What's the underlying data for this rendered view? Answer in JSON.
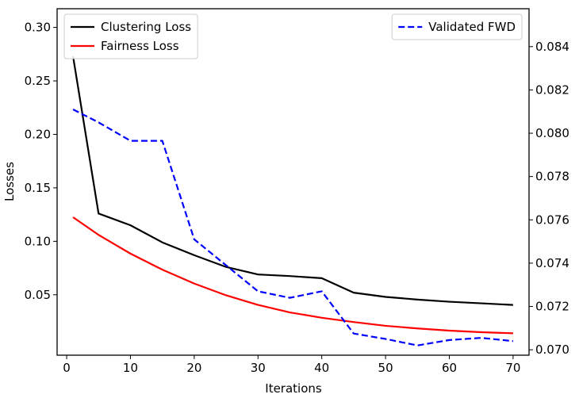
{
  "chart_data": {
    "type": "line",
    "title": "",
    "xlabel": "Iterations",
    "ylabel": "Losses",
    "y2label": "",
    "xlim": [
      -1.5,
      72.5
    ],
    "ylim": [
      -0.0065,
      0.3175
    ],
    "y2lim": [
      0.06975,
      0.08575
    ],
    "grid": false,
    "x_ticks": [
      0,
      10,
      20,
      30,
      40,
      50,
      60,
      70
    ],
    "x_tick_labels": [
      "0",
      "10",
      "20",
      "30",
      "40",
      "50",
      "60",
      "70"
    ],
    "y_ticks": [
      0.05,
      0.1,
      0.15,
      0.2,
      0.25,
      0.3
    ],
    "y_tick_labels": [
      "0.05",
      "0.10",
      "0.15",
      "0.20",
      "0.25",
      "0.30"
    ],
    "y2_ticks": [
      0.07,
      0.072,
      0.074,
      0.076,
      0.078,
      0.08,
      0.082,
      0.084
    ],
    "y2_tick_labels": [
      "0.070",
      "0.072",
      "0.074",
      "0.076",
      "0.078",
      "0.080",
      "0.082",
      "0.084"
    ],
    "x": [
      1,
      5,
      10,
      15,
      20,
      25,
      30,
      35,
      40,
      45,
      50,
      55,
      60,
      65,
      70
    ],
    "series": [
      {
        "name": "Clustering Loss",
        "axis": "left",
        "color": "#000000",
        "style": "solid",
        "values": [
          0.273,
          0.126,
          0.115,
          0.099,
          0.087,
          0.076,
          0.069,
          0.0675,
          0.0655,
          0.052,
          0.048,
          0.0455,
          0.0435,
          0.042,
          0.0405
        ]
      },
      {
        "name": "Fairness Loss",
        "axis": "left",
        "color": "#ff0000",
        "style": "solid",
        "values": [
          0.1225,
          0.106,
          0.0885,
          0.0735,
          0.0605,
          0.0495,
          0.0405,
          0.0335,
          0.0285,
          0.0245,
          0.021,
          0.0185,
          0.0165,
          0.015,
          0.014
        ]
      },
      {
        "name": "Validated FWD",
        "axis": "right",
        "color": "#0000ff",
        "style": "dashed",
        "values": [
          0.0811,
          0.0805,
          0.07965,
          0.07965,
          0.0751,
          0.0739,
          0.0727,
          0.0724,
          0.0727,
          0.07075,
          0.0705,
          0.0702,
          0.07045,
          0.07055,
          0.0704
        ]
      }
    ],
    "legend_left": {
      "placement": "top-left",
      "entries": [
        "Clustering Loss",
        "Fairness Loss"
      ]
    },
    "legend_right": {
      "placement": "top-right",
      "entries": [
        "Validated FWD"
      ]
    }
  }
}
